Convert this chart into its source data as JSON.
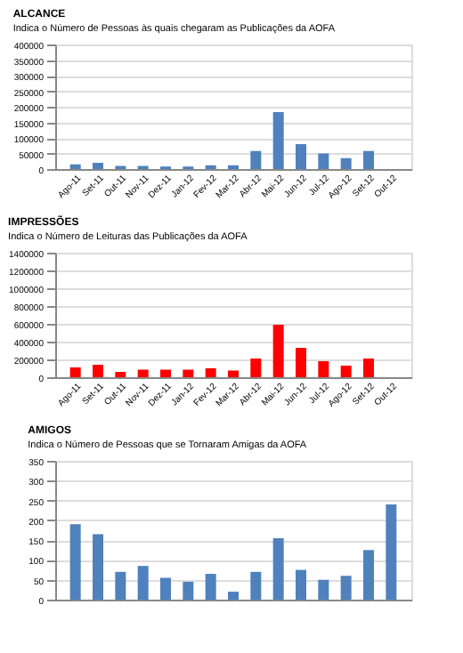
{
  "chart_data": [
    {
      "type": "bar",
      "title": "ALCANCE",
      "subtitle": "Indica o Número de Pessoas às quais chegaram as Publicações da AOFA",
      "categories": [
        "Ago-11",
        "Set-11",
        "Out-11",
        "Nov-11",
        "Dez-11",
        "Jan-12",
        "Fev-12",
        "Mar-12",
        "Abr-12",
        "Mai-12",
        "Jun-12",
        "Jul-12",
        "Ago-12",
        "Set-12",
        "Out-12"
      ],
      "series": [
        {
          "color": "#4f81bd",
          "values": [
            15000,
            20000,
            10000,
            10000,
            8000,
            8000,
            12000,
            12000,
            58000,
            183000,
            80000,
            50000,
            35000,
            58000,
            null
          ]
        }
      ],
      "ylim": [
        0,
        400000
      ],
      "yticks": [
        0,
        50000,
        100000,
        150000,
        200000,
        250000,
        300000,
        350000,
        400000
      ],
      "grid": "y"
    },
    {
      "type": "bar",
      "title": "IMPRESSÕES",
      "subtitle": "Indica o Número de Leituras das Publicações da AOFA",
      "categories": [
        "Ago-11",
        "Set-11",
        "Out-11",
        "Nov-11",
        "Dez-11",
        "Jan-12",
        "Fev-12",
        "Mar-12",
        "Abr-12",
        "Mai-12",
        "Jun-12",
        "Jul-12",
        "Ago-12",
        "Set-12",
        "Out-12"
      ],
      "series": [
        {
          "color": "#ff0000",
          "values": [
            110000,
            140000,
            60000,
            85000,
            85000,
            85000,
            100000,
            75000,
            210000,
            590000,
            330000,
            180000,
            130000,
            210000,
            null
          ]
        }
      ],
      "ylim": [
        0,
        1400000
      ],
      "yticks": [
        0,
        200000,
        400000,
        600000,
        800000,
        1000000,
        1200000,
        1400000
      ],
      "grid": "y"
    },
    {
      "type": "bar",
      "title": "AMIGOS",
      "subtitle": "Indica o Número de Pessoas que se Tornaram Amigas da AOFA",
      "categories": [
        null,
        null,
        null,
        null,
        null,
        null,
        null,
        null,
        null,
        null,
        null,
        null,
        null,
        null,
        null
      ],
      "series": [
        {
          "color": "#4f81bd",
          "values": [
            190,
            165,
            70,
            85,
            55,
            45,
            65,
            20,
            70,
            155,
            75,
            50,
            60,
            125,
            240
          ]
        }
      ],
      "ylim": [
        0,
        350
      ],
      "yticks": [
        0,
        50,
        100,
        150,
        200,
        250,
        300,
        350
      ],
      "grid": "y",
      "tick_labels": "y"
    }
  ]
}
